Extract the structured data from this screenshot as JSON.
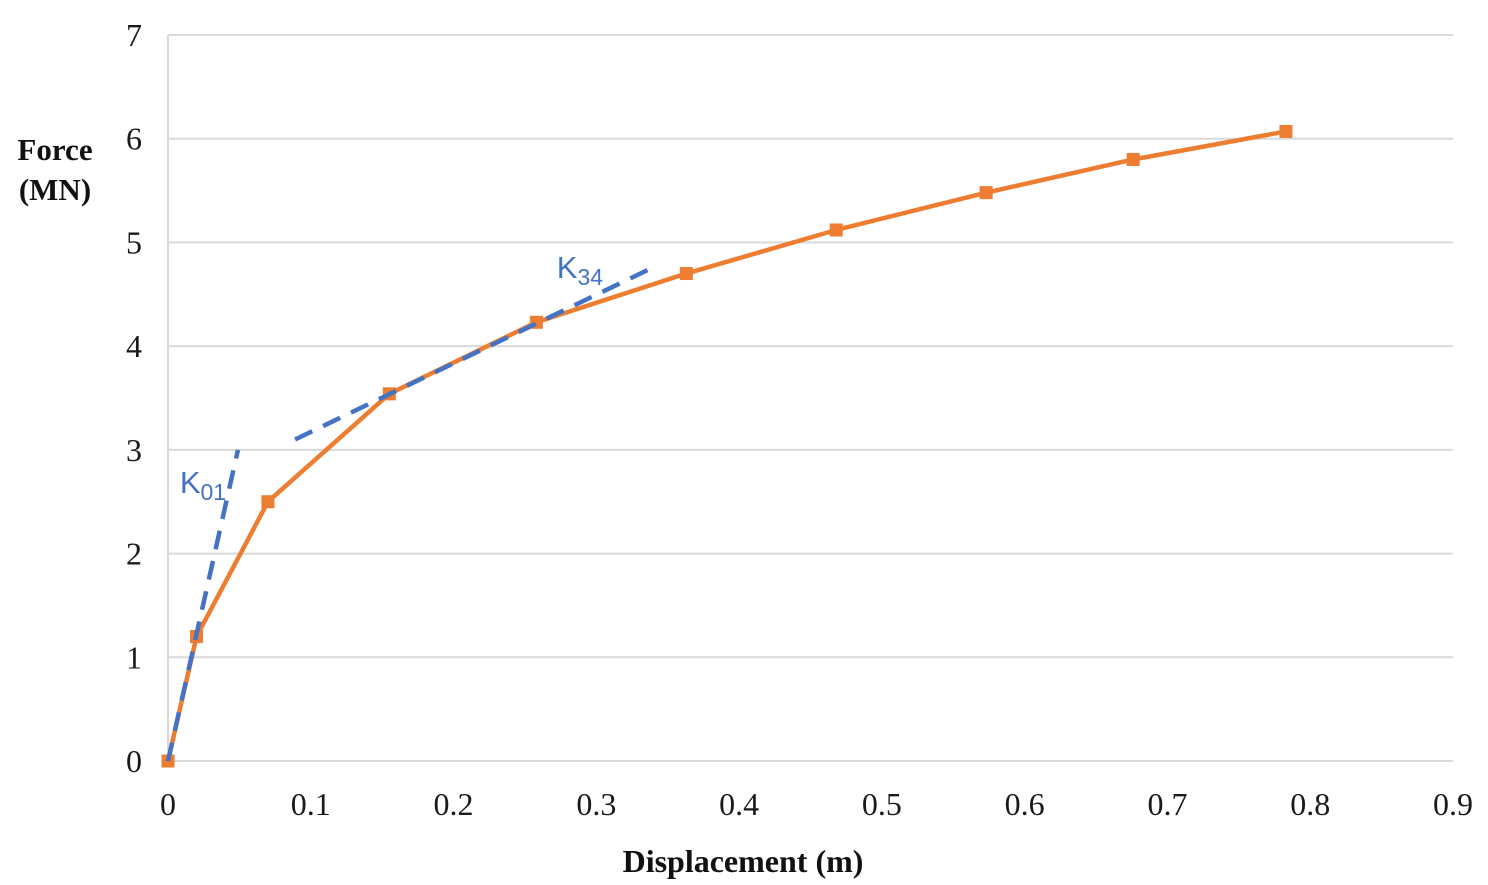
{
  "chart_data": {
    "type": "line",
    "title": "",
    "xlabel": "Displacement (m)",
    "ylabel": "Force (MN)",
    "ylabel_lines": [
      "Force",
      "(MN)"
    ],
    "xlim": [
      0,
      0.9
    ],
    "ylim": [
      0,
      7
    ],
    "xticks": [
      0,
      0.1,
      0.2,
      0.3,
      0.4,
      0.5,
      0.6,
      0.7,
      0.8,
      0.9
    ],
    "xtick_labels": [
      "0",
      "0.1",
      "0.2",
      "0.3",
      "0.4",
      "0.5",
      "0.6",
      "0.7",
      "0.8",
      "0.9"
    ],
    "yticks": [
      0,
      1,
      2,
      3,
      4,
      5,
      6,
      7
    ],
    "ytick_labels": [
      "0",
      "1",
      "2",
      "3",
      "4",
      "5",
      "6",
      "7"
    ],
    "grid": "horizontal",
    "legend": "none",
    "series": [
      {
        "name": "force-displacement-curve",
        "color": "#ED7D31",
        "marker": "square",
        "points": [
          [
            0.0,
            0.0
          ],
          [
            0.02,
            1.2
          ],
          [
            0.07,
            2.5
          ],
          [
            0.155,
            3.54
          ],
          [
            0.258,
            4.23
          ],
          [
            0.363,
            4.7
          ],
          [
            0.468,
            5.12
          ],
          [
            0.573,
            5.48
          ],
          [
            0.676,
            5.8
          ],
          [
            0.783,
            6.07
          ]
        ]
      }
    ],
    "annotations": [
      {
        "name": "k01-line",
        "kind": "dashed-line",
        "color": "#4472C4",
        "from": [
          0.0,
          0.0
        ],
        "to": [
          0.049,
          3.0
        ],
        "dash": "19 12"
      },
      {
        "name": "k34-line",
        "kind": "dashed-line",
        "color": "#4472C4",
        "from": [
          0.089,
          3.1
        ],
        "to": [
          0.343,
          4.78
        ],
        "dash": "19 12"
      },
      {
        "name": "k01-label",
        "kind": "label",
        "color": "#4472C4",
        "text_main": "K",
        "text_sub": "01",
        "at": [
          0.0245,
          2.681
        ]
      },
      {
        "name": "k34-label",
        "kind": "label",
        "color": "#4472C4",
        "text_main": "K",
        "text_sub": "34",
        "at": [
          0.2885,
          4.754
        ]
      }
    ],
    "colors": {
      "series_orange": "#ED7D31",
      "annotation_blue": "#4472C4",
      "gridline_gray": "#D9D9D9",
      "text_dark": "#1a1a1a",
      "background": "#ffffff"
    }
  }
}
